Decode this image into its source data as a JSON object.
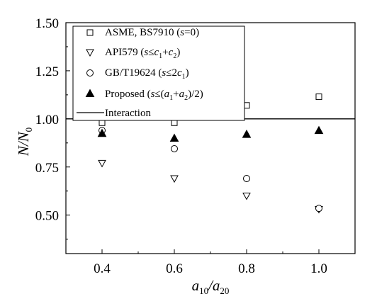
{
  "chart_data": {
    "type": "scatter",
    "xlabel": "a10/a20",
    "ylabel": "N/N0",
    "xlim": [
      0.3,
      1.1
    ],
    "ylim": [
      0.3,
      1.5
    ],
    "x_ticks": [
      "0.4",
      "0.6",
      "0.8",
      "1.0"
    ],
    "y_ticks": [
      "0.50",
      "0.75",
      "1.00",
      "1.25",
      "1.50"
    ],
    "grid": false,
    "legend_position": "top-left",
    "x": [
      0.4,
      0.6,
      0.8,
      1.0
    ],
    "series": [
      {
        "name": "ASME, BS7910 (s=0)",
        "marker": "square-open",
        "values": [
          0.98,
          0.98,
          1.07,
          1.115
        ]
      },
      {
        "name": "API579 (s≤c1+c2)",
        "marker": "triangle-down-open",
        "values": [
          0.77,
          0.69,
          0.6,
          0.53
        ]
      },
      {
        "name": "GB/T19624 (s≤2c1)",
        "marker": "circle-open",
        "values": [
          0.94,
          0.845,
          0.69,
          0.535
        ]
      },
      {
        "name": "Proposed (s≤(a1+a2)/2)",
        "marker": "triangle-up-filled",
        "values": [
          0.925,
          0.9,
          0.92,
          0.94
        ]
      }
    ],
    "reference_lines": [
      {
        "name": "Interaction",
        "y": 1.0
      }
    ]
  }
}
